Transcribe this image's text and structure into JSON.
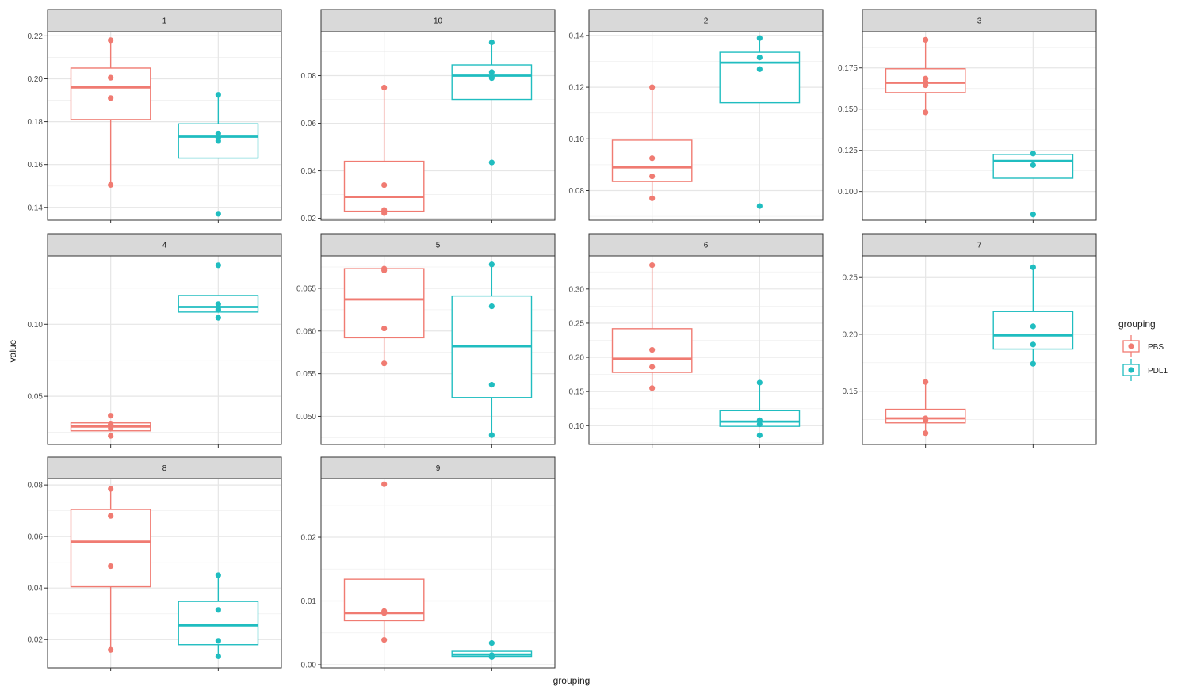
{
  "colors": {
    "PBS": "#F07B72",
    "PDL1": "#20BDC0"
  },
  "chart_data": {
    "type": "boxplot",
    "xlabel": "grouping",
    "ylabel": "value",
    "legend": {
      "title": "grouping",
      "position": "right",
      "entries": [
        "PBS",
        "PDL1"
      ]
    },
    "groups": [
      "PBS",
      "PDL1"
    ],
    "panels": [
      {
        "label": "1",
        "ylim": [
          0.134,
          0.222
        ],
        "ticks": [
          0.14,
          0.16,
          0.18,
          0.2,
          0.22
        ],
        "tick_labels": [
          "0.14",
          "0.16",
          "0.18",
          "0.20",
          "0.22"
        ],
        "boxes": [
          {
            "group": "PBS",
            "lower_whisker": 0.15,
            "q1": 0.181,
            "median": 0.196,
            "q3": 0.205,
            "upper_whisker": 0.218,
            "points": [
              0.218,
              0.2005,
              0.191,
              0.1505
            ]
          },
          {
            "group": "PDL1",
            "lower_whisker": 0.163,
            "q1": 0.163,
            "median": 0.173,
            "q3": 0.179,
            "upper_whisker": 0.1925,
            "points": [
              0.1925,
              0.1745,
              0.1725,
              0.171,
              0.137
            ]
          }
        ]
      },
      {
        "label": "10",
        "ylim": [
          0.0192,
          0.0985
        ],
        "ticks": [
          0.02,
          0.04,
          0.06,
          0.08
        ],
        "tick_labels": [
          "0.02",
          "0.04",
          "0.06",
          "0.08"
        ],
        "boxes": [
          {
            "group": "PBS",
            "lower_whisker": 0.0225,
            "q1": 0.023,
            "median": 0.029,
            "q3": 0.044,
            "upper_whisker": 0.075,
            "points": [
              0.075,
              0.034,
              0.0235,
              0.0222
            ]
          },
          {
            "group": "PDL1",
            "lower_whisker": 0.07,
            "q1": 0.07,
            "median": 0.08,
            "q3": 0.0845,
            "upper_whisker": 0.094,
            "points": [
              0.094,
              0.0815,
              0.0795,
              0.079,
              0.0435
            ]
          }
        ]
      },
      {
        "label": "2",
        "ylim": [
          0.0685,
          0.1415
        ],
        "ticks": [
          0.08,
          0.1,
          0.12,
          0.14
        ],
        "tick_labels": [
          "0.08",
          "0.10",
          "0.12",
          "0.14"
        ],
        "boxes": [
          {
            "group": "PBS",
            "lower_whisker": 0.077,
            "q1": 0.0835,
            "median": 0.089,
            "q3": 0.0995,
            "upper_whisker": 0.12,
            "points": [
              0.12,
              0.0925,
              0.0855,
              0.077
            ]
          },
          {
            "group": "PDL1",
            "lower_whisker": 0.114,
            "q1": 0.114,
            "median": 0.1295,
            "q3": 0.1335,
            "upper_whisker": 0.139,
            "points": [
              0.139,
              0.1315,
              0.127,
              0.074
            ]
          }
        ]
      },
      {
        "label": "3",
        "ylim": [
          0.0825,
          0.197
        ],
        "ticks": [
          0.1,
          0.125,
          0.15,
          0.175
        ],
        "tick_labels": [
          "0.100",
          "0.125",
          "0.150",
          "0.175"
        ],
        "boxes": [
          {
            "group": "PBS",
            "lower_whisker": 0.148,
            "q1": 0.16,
            "median": 0.166,
            "q3": 0.1745,
            "upper_whisker": 0.192,
            "points": [
              0.192,
              0.1685,
              0.1665,
              0.1645,
              0.148
            ]
          },
          {
            "group": "PDL1",
            "lower_whisker": 0.108,
            "q1": 0.108,
            "median": 0.1185,
            "q3": 0.1225,
            "upper_whisker": 0.1225,
            "points": [
              0.123,
              0.116,
              0.086
            ]
          }
        ]
      },
      {
        "label": "4",
        "ylim": [
          0.0165,
          0.1475
        ],
        "ticks": [
          0.05,
          0.1
        ],
        "tick_labels": [
          "0.05",
          "0.10"
        ],
        "boxes": [
          {
            "group": "PBS",
            "lower_whisker": 0.026,
            "q1": 0.026,
            "median": 0.029,
            "q3": 0.0315,
            "upper_whisker": 0.0315,
            "points": [
              0.0365,
              0.0305,
              0.0275,
              0.0225
            ]
          },
          {
            "group": "PDL1",
            "lower_whisker": 0.1085,
            "q1": 0.1085,
            "median": 0.112,
            "q3": 0.12,
            "upper_whisker": 0.12,
            "points": [
              0.141,
              0.114,
              0.1115,
              0.11,
              0.1045
            ]
          }
        ]
      },
      {
        "label": "5",
        "ylim": [
          0.0467,
          0.0688
        ],
        "ticks": [
          0.05,
          0.055,
          0.06,
          0.065
        ],
        "tick_labels": [
          "0.050",
          "0.055",
          "0.060",
          "0.065"
        ],
        "boxes": [
          {
            "group": "PBS",
            "lower_whisker": 0.0562,
            "q1": 0.0592,
            "median": 0.0637,
            "q3": 0.0673,
            "upper_whisker": 0.0673,
            "points": [
              0.0673,
              0.0671,
              0.0603,
              0.0562
            ]
          },
          {
            "group": "PDL1",
            "lower_whisker": 0.0478,
            "q1": 0.0522,
            "median": 0.0582,
            "q3": 0.0641,
            "upper_whisker": 0.0678,
            "points": [
              0.0678,
              0.0629,
              0.0537,
              0.0478
            ]
          }
        ]
      },
      {
        "label": "6",
        "ylim": [
          0.0725,
          0.3485
        ],
        "ticks": [
          0.1,
          0.15,
          0.2,
          0.25,
          0.3
        ],
        "tick_labels": [
          "0.10",
          "0.15",
          "0.20",
          "0.25",
          "0.30"
        ],
        "boxes": [
          {
            "group": "PBS",
            "lower_whisker": 0.155,
            "q1": 0.178,
            "median": 0.198,
            "q3": 0.242,
            "upper_whisker": 0.335,
            "points": [
              0.335,
              0.211,
              0.186,
              0.155
            ]
          },
          {
            "group": "PDL1",
            "lower_whisker": 0.099,
            "q1": 0.099,
            "median": 0.106,
            "q3": 0.122,
            "upper_whisker": 0.163,
            "points": [
              0.163,
              0.108,
              0.102,
              0.086
            ]
          }
        ]
      },
      {
        "label": "7",
        "ylim": [
          0.103,
          0.269
        ],
        "ticks": [
          0.15,
          0.2,
          0.25
        ],
        "tick_labels": [
          "0.15",
          "0.20",
          "0.25"
        ],
        "boxes": [
          {
            "group": "PBS",
            "lower_whisker": 0.113,
            "q1": 0.122,
            "median": 0.126,
            "q3": 0.134,
            "upper_whisker": 0.158,
            "points": [
              0.158,
              0.126,
              0.124,
              0.113
            ]
          },
          {
            "group": "PDL1",
            "lower_whisker": 0.174,
            "q1": 0.187,
            "median": 0.199,
            "q3": 0.22,
            "upper_whisker": 0.259,
            "points": [
              0.259,
              0.207,
              0.191,
              0.174
            ]
          }
        ]
      },
      {
        "label": "8",
        "ylim": [
          0.009,
          0.0825
        ],
        "ticks": [
          0.02,
          0.04,
          0.06,
          0.08
        ],
        "tick_labels": [
          "0.02",
          "0.04",
          "0.06",
          "0.08"
        ],
        "boxes": [
          {
            "group": "PBS",
            "lower_whisker": 0.016,
            "q1": 0.0405,
            "median": 0.058,
            "q3": 0.0705,
            "upper_whisker": 0.0785,
            "points": [
              0.0785,
              0.068,
              0.0485,
              0.016
            ]
          },
          {
            "group": "PDL1",
            "lower_whisker": 0.0135,
            "q1": 0.018,
            "median": 0.0255,
            "q3": 0.0348,
            "upper_whisker": 0.045,
            "points": [
              0.045,
              0.0315,
              0.0195,
              0.0135
            ]
          }
        ]
      },
      {
        "label": "9",
        "ylim": [
          -0.0005,
          0.0292
        ],
        "ticks": [
          0.0,
          0.01,
          0.02
        ],
        "tick_labels": [
          "0.00",
          "0.01",
          "0.02"
        ],
        "boxes": [
          {
            "group": "PBS",
            "lower_whisker": 0.0039,
            "q1": 0.0069,
            "median": 0.0081,
            "q3": 0.0134,
            "upper_whisker": 0.0134,
            "points": [
              0.0283,
              0.0084,
              0.0081,
              0.0039
            ]
          },
          {
            "group": "PDL1",
            "lower_whisker": 0.0013,
            "q1": 0.0013,
            "median": 0.0016,
            "q3": 0.0021,
            "upper_whisker": 0.0021,
            "points": [
              0.0034,
              0.0015,
              0.0012
            ]
          }
        ]
      }
    ]
  }
}
